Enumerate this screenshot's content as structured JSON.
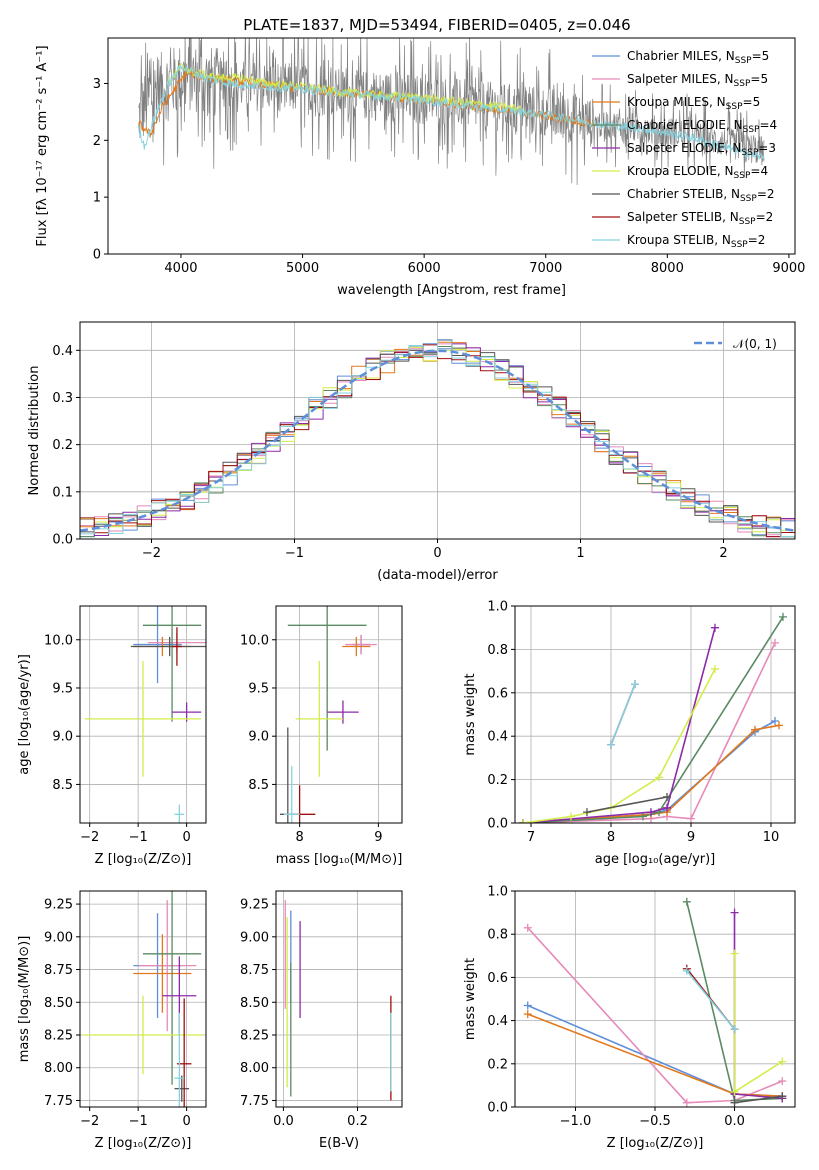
{
  "title": "PLATE=1837, MJD=53494, FIBERID=0405, z=0.046",
  "colors": {
    "chabrier_miles": "#5f8fd8",
    "salpeter_miles": "#e68ab9",
    "kroupa_miles": "#e2781c",
    "chabrier_elodie": "#5a8a62",
    "salpeter_elodie": "#8e2aa8",
    "kroupa_elodie": "#d4ec4a",
    "chabrier_stelib": "#555555",
    "salpeter_stelib": "#a01010",
    "kroupa_stelib": "#86d3df",
    "data": "#808080",
    "grid": "#b0b0b0"
  },
  "chart_data": [
    {
      "id": "spectrum",
      "type": "line",
      "title": "PLATE=1837, MJD=53494, FIBERID=0405, z=0.046",
      "xlabel": "wavelength [Angstrom, rest frame]",
      "ylabel": "Flux [fλ 10⁻¹⁷ erg cm⁻² s⁻¹ A⁻¹]",
      "xlim": [
        3400,
        9050
      ],
      "ylim": [
        0,
        3.8
      ],
      "xticks": [
        4000,
        5000,
        6000,
        7000,
        8000,
        9000
      ],
      "yticks": [
        0,
        1,
        2,
        3
      ],
      "grid": false,
      "legend_position": "upper right",
      "legend": [
        {
          "label": "Chabrier MILES, N",
          "sub": "SSP",
          "suffix": "=5",
          "color_key": "chabrier_miles"
        },
        {
          "label": "Salpeter MILES, N",
          "sub": "SSP",
          "suffix": "=5",
          "color_key": "salpeter_miles"
        },
        {
          "label": "Kroupa MILES, N",
          "sub": "SSP",
          "suffix": "=5",
          "color_key": "kroupa_miles"
        },
        {
          "label": "Chabrier ELODIE, N",
          "sub": "SSP",
          "suffix": "=4",
          "color_key": "chabrier_elodie"
        },
        {
          "label": "Salpeter ELODIE, N",
          "sub": "SSP",
          "suffix": "=3",
          "color_key": "salpeter_elodie"
        },
        {
          "label": "Kroupa ELODIE, N",
          "sub": "SSP",
          "suffix": "=4",
          "color_key": "kroupa_elodie"
        },
        {
          "label": "Chabrier STELIB, N",
          "sub": "SSP",
          "suffix": "=2",
          "color_key": "chabrier_stelib"
        },
        {
          "label": "Salpeter STELIB, N",
          "sub": "SSP",
          "suffix": "=2",
          "color_key": "salpeter_stelib"
        },
        {
          "label": "Kroupa STELIB, N",
          "sub": "SSP",
          "suffix": "=2",
          "color_key": "kroupa_stelib"
        }
      ],
      "series": [
        {
          "name": "data",
          "color_key": "data",
          "x": [
            3650,
            3700,
            3800,
            3900,
            4000,
            4100,
            4200,
            4400,
            4600,
            4800,
            5000,
            5200,
            5400,
            5600,
            5800,
            6000,
            6200,
            6400,
            6600,
            6800,
            7000,
            7200,
            7400,
            7600,
            7800,
            8000,
            8200,
            8400,
            8600,
            8800
          ],
          "y": [
            2.4,
            2.6,
            2.9,
            3.0,
            3.1,
            3.1,
            3.05,
            3.0,
            2.95,
            2.95,
            2.9,
            2.85,
            2.8,
            2.78,
            2.75,
            2.72,
            2.68,
            2.62,
            2.58,
            2.55,
            2.5,
            2.42,
            2.3,
            2.25,
            2.2,
            2.15,
            2.1,
            2.0,
            1.9,
            1.8
          ],
          "noise": 1.1
        },
        {
          "name": "Kroupa MILES",
          "color_key": "kroupa_miles",
          "x": [
            3650,
            3750,
            3850,
            3950,
            4050,
            4200,
            4400,
            4600,
            4800,
            5000,
            5300,
            5600,
            6000,
            6400,
            6800,
            7200,
            7400
          ],
          "y": [
            2.3,
            2.1,
            2.6,
            2.9,
            3.2,
            3.1,
            3.05,
            3.0,
            2.95,
            2.9,
            2.85,
            2.8,
            2.7,
            2.6,
            2.5,
            2.35,
            2.3
          ]
        },
        {
          "name": "Kroupa ELODIE",
          "color_key": "kroupa_elodie",
          "x": [
            3900,
            4000,
            4100,
            4300,
            4500,
            4700,
            5000,
            5300,
            5600,
            6000,
            6400,
            6800
          ],
          "y": [
            3.0,
            3.3,
            3.2,
            3.1,
            3.1,
            3.0,
            2.95,
            2.85,
            2.8,
            2.75,
            2.65,
            2.55
          ]
        },
        {
          "name": "Kroupa STELIB",
          "color_key": "kroupa_stelib",
          "x": [
            3650,
            3700,
            3800,
            3900,
            4000,
            4200,
            4400,
            4700,
            5000,
            5400,
            5800,
            6200,
            6600,
            7000,
            7400,
            7800,
            8200,
            8600,
            8800
          ],
          "y": [
            2.2,
            1.9,
            2.5,
            3.0,
            3.3,
            3.1,
            3.0,
            2.95,
            2.9,
            2.82,
            2.75,
            2.65,
            2.55,
            2.45,
            2.3,
            2.2,
            2.05,
            1.8,
            1.7
          ]
        }
      ]
    },
    {
      "id": "residuals",
      "type": "line",
      "xlabel": "(data-model)/error",
      "ylabel": "Normed distribution",
      "xlim": [
        -2.5,
        2.5
      ],
      "ylim": [
        0,
        0.46
      ],
      "xticks": [
        -2,
        -1,
        0,
        1,
        2
      ],
      "yticks": [
        0.0,
        0.1,
        0.2,
        0.3,
        0.4
      ],
      "grid": true,
      "legend_position": "upper right",
      "legend": [
        {
          "label": "𝒩(0, 1)",
          "color_key": "chabrier_miles",
          "style": "dashed"
        }
      ],
      "bin_width": 0.1
    },
    {
      "id": "age-vs-Z",
      "type": "scatter",
      "xlabel": "Z [log₁₀(Z/Z⊙)]",
      "ylabel": "age  [log₁₀(age/yr)]",
      "xlim": [
        -2.2,
        0.4
      ],
      "ylim": [
        8.1,
        10.35
      ],
      "xticks": [
        -2,
        -1,
        0
      ],
      "yticks": [
        8.5,
        9.0,
        9.5,
        10.0
      ],
      "grid": true,
      "crosses": [
        {
          "color_key": "chabrier_miles",
          "x": -0.6,
          "y": 9.95,
          "xerr": 0.5,
          "yerr": 0.4
        },
        {
          "color_key": "salpeter_miles",
          "x": -0.2,
          "y": 9.97,
          "xerr": 0.6,
          "yerr": 0.1
        },
        {
          "color_key": "kroupa_miles",
          "x": -0.5,
          "y": 9.93,
          "xerr": 0.6,
          "yerr": 0.1
        },
        {
          "color_key": "chabrier_elodie",
          "x": -0.3,
          "y": 10.15,
          "xerr": 0.6,
          "yerr": 1.0
        },
        {
          "color_key": "salpeter_elodie",
          "x": 0.0,
          "y": 9.25,
          "xerr": 0.3,
          "yerr": 0.1
        },
        {
          "color_key": "kroupa_elodie",
          "x": -0.9,
          "y": 9.18,
          "xerr": 1.2,
          "yerr": 0.6
        },
        {
          "color_key": "chabrier_stelib",
          "x": -0.35,
          "y": 9.93,
          "xerr": 0.8,
          "yerr": 0.1
        },
        {
          "color_key": "salpeter_stelib",
          "x": -0.2,
          "y": 9.93,
          "xerr": 0.1,
          "yerr": 0.2
        },
        {
          "color_key": "kroupa_stelib",
          "x": -0.15,
          "y": 8.19,
          "xerr": 0.1,
          "yerr": 0.1
        }
      ]
    },
    {
      "id": "age-vs-mass",
      "type": "scatter",
      "xlabel": "mass [log₁₀(M/M⊙)]",
      "xlim": [
        7.7,
        9.3
      ],
      "ylim": [
        8.1,
        10.35
      ],
      "xticks": [
        8,
        9
      ],
      "yticks": [
        8.5,
        9.0,
        9.5,
        10.0
      ],
      "grid": true,
      "crosses": [
        {
          "color_key": "chabrier_miles",
          "x": 8.78,
          "y": 9.95,
          "xerr": 0.12,
          "yerr": 0.1
        },
        {
          "color_key": "salpeter_miles",
          "x": 8.78,
          "y": 9.95,
          "xerr": 0.2,
          "yerr": 0.1
        },
        {
          "color_key": "kroupa_miles",
          "x": 8.72,
          "y": 9.93,
          "xerr": 0.18,
          "yerr": 0.1
        },
        {
          "color_key": "chabrier_elodie",
          "x": 8.35,
          "y": 10.15,
          "xerr": 0.5,
          "yerr": 1.3
        },
        {
          "color_key": "salpeter_elodie",
          "x": 8.55,
          "y": 9.25,
          "xerr": 0.2,
          "yerr": 0.12
        },
        {
          "color_key": "kroupa_elodie",
          "x": 8.25,
          "y": 9.18,
          "xerr": 0.3,
          "yerr": 0.6
        },
        {
          "color_key": "chabrier_stelib",
          "x": 7.85,
          "y": 8.19,
          "xerr": 0.1,
          "yerr": 0.9
        },
        {
          "color_key": "salpeter_stelib",
          "x": 8.0,
          "y": 8.19,
          "xerr": 0.2,
          "yerr": 0.3
        },
        {
          "color_key": "kroupa_stelib",
          "x": 7.9,
          "y": 8.19,
          "xerr": 0.1,
          "yerr": 0.5
        }
      ]
    },
    {
      "id": "weight-vs-age",
      "type": "line",
      "xlabel": "age  [log₁₀(age/yr)]",
      "ylabel": "mass weight",
      "xlim": [
        6.8,
        10.3
      ],
      "ylim": [
        0,
        1.0
      ],
      "xticks": [
        7,
        8,
        9,
        10
      ],
      "yticks": [
        0.0,
        0.2,
        0.4,
        0.6,
        0.8,
        1.0
      ],
      "grid": true,
      "series": [
        {
          "name": "Chabrier MILES",
          "color_key": "chabrier_miles",
          "x": [
            6.9,
            8.5,
            8.7,
            9.8,
            10.05
          ],
          "y": [
            0.0,
            0.04,
            0.06,
            0.42,
            0.47
          ]
        },
        {
          "name": "Salpeter MILES",
          "color_key": "salpeter_miles",
          "x": [
            6.9,
            8.5,
            8.7,
            9.0,
            10.05
          ],
          "y": [
            0.0,
            0.02,
            0.03,
            0.02,
            0.83
          ]
        },
        {
          "name": "Kroupa MILES",
          "color_key": "kroupa_miles",
          "x": [
            6.9,
            8.5,
            8.7,
            9.8,
            10.1
          ],
          "y": [
            0.0,
            0.04,
            0.05,
            0.43,
            0.45
          ]
        },
        {
          "name": "Chabrier ELODIE",
          "color_key": "chabrier_elodie",
          "x": [
            6.9,
            8.4,
            8.6,
            10.15
          ],
          "y": [
            0.0,
            0.03,
            0.05,
            0.95
          ]
        },
        {
          "name": "Salpeter ELODIE",
          "color_key": "salpeter_elodie",
          "x": [
            6.9,
            8.5,
            8.7,
            9.3
          ],
          "y": [
            0.0,
            0.05,
            0.07,
            0.9
          ]
        },
        {
          "name": "Kroupa ELODIE",
          "color_key": "kroupa_elodie",
          "x": [
            6.9,
            7.5,
            8.0,
            8.6,
            9.3
          ],
          "y": [
            0.0,
            0.03,
            0.07,
            0.21,
            0.71
          ]
        },
        {
          "name": "Chabrier STELIB",
          "color_key": "chabrier_stelib",
          "x": [
            7.7,
            8.7
          ],
          "y": [
            0.05,
            0.12
          ]
        },
        {
          "name": "Salpeter STELIB",
          "color_key": "salpeter_stelib",
          "x": [
            8.0,
            8.3
          ],
          "y": [
            0.36,
            0.64
          ]
        },
        {
          "name": "Kroupa STELIB",
          "color_key": "kroupa_stelib",
          "x": [
            8.0,
            8.3
          ],
          "y": [
            0.36,
            0.64
          ]
        }
      ]
    },
    {
      "id": "mass-vs-Z",
      "type": "scatter",
      "xlabel": "Z [log₁₀(Z/Z⊙)]",
      "ylabel": "mass [log₁₀(M/M⊙)]",
      "xlim": [
        -2.2,
        0.4
      ],
      "ylim": [
        7.7,
        9.35
      ],
      "xticks": [
        -2,
        -1,
        0
      ],
      "yticks": [
        7.75,
        8.0,
        8.25,
        8.5,
        8.75,
        9.0,
        9.25
      ],
      "grid": true,
      "crosses": [
        {
          "color_key": "chabrier_miles",
          "x": -0.6,
          "y": 8.78,
          "xerr": 0.5,
          "yerr": 0.4
        },
        {
          "color_key": "salpeter_miles",
          "x": -0.4,
          "y": 8.78,
          "xerr": 0.6,
          "yerr": 0.5
        },
        {
          "color_key": "kroupa_miles",
          "x": -0.5,
          "y": 8.72,
          "xerr": 0.6,
          "yerr": 0.3
        },
        {
          "color_key": "chabrier_elodie",
          "x": -0.3,
          "y": 8.87,
          "xerr": 0.6,
          "yerr": 1.0
        },
        {
          "color_key": "salpeter_elodie",
          "x": -0.15,
          "y": 8.55,
          "xerr": 0.35,
          "yerr": 0.3
        },
        {
          "color_key": "kroupa_elodie",
          "x": -0.9,
          "y": 8.25,
          "xerr": 1.25,
          "yerr": 0.3
        },
        {
          "color_key": "chabrier_stelib",
          "x": -0.1,
          "y": 7.84,
          "xerr": 0.15,
          "yerr": 0.1
        },
        {
          "color_key": "salpeter_stelib",
          "x": -0.05,
          "y": 8.03,
          "xerr": 0.15,
          "yerr": 0.5
        },
        {
          "color_key": "kroupa_stelib",
          "x": -0.15,
          "y": 7.92,
          "xerr": 0.1,
          "yerr": 0.5
        }
      ]
    },
    {
      "id": "mass-vs-EBV",
      "type": "scatter",
      "xlabel": "E(B-V)",
      "xlim": [
        -0.02,
        0.32
      ],
      "ylim": [
        7.7,
        9.35
      ],
      "xticks": [
        0.0,
        0.2
      ],
      "yticks": [
        7.75,
        8.0,
        8.25,
        8.5,
        8.75,
        9.0,
        9.25
      ],
      "grid": true,
      "vbars": [
        {
          "color_key": "salpeter_miles",
          "x": 0.005,
          "y0": 8.45,
          "y1": 9.28
        },
        {
          "color_key": "kroupa_elodie",
          "x": 0.01,
          "y0": 7.85,
          "y1": 9.15
        },
        {
          "color_key": "chabrier_miles",
          "x": 0.02,
          "y0": 8.5,
          "y1": 9.2
        },
        {
          "color_key": "chabrier_elodie",
          "x": 0.02,
          "y0": 7.78,
          "y1": 8.8
        },
        {
          "color_key": "salpeter_elodie",
          "x": 0.045,
          "y0": 8.38,
          "y1": 9.12
        },
        {
          "color_key": "salpeter_stelib",
          "x": 0.29,
          "y0": 7.75,
          "y1": 8.55
        },
        {
          "color_key": "kroupa_stelib",
          "x": 0.29,
          "y0": 7.82,
          "y1": 8.42
        }
      ]
    },
    {
      "id": "weight-vs-Z",
      "type": "line",
      "xlabel": "Z [log₁₀(Z/Z⊙)]",
      "ylabel": "mass weight",
      "xlim": [
        -1.38,
        0.38
      ],
      "ylim": [
        0,
        1.0
      ],
      "xticks": [
        -1.0,
        -0.5,
        0.0
      ],
      "yticks": [
        0.0,
        0.2,
        0.4,
        0.6,
        0.8,
        1.0
      ],
      "grid": true,
      "series": [
        {
          "name": "Chabrier MILES",
          "color_key": "chabrier_miles",
          "x": [
            -1.3,
            0.0,
            0.3
          ],
          "y": [
            0.47,
            0.06,
            0.05
          ]
        },
        {
          "name": "Salpeter MILES",
          "color_key": "salpeter_miles",
          "x": [
            -1.3,
            -0.3,
            0.0,
            0.3
          ],
          "y": [
            0.83,
            0.02,
            0.03,
            0.12
          ]
        },
        {
          "name": "Kroupa MILES",
          "color_key": "kroupa_miles",
          "x": [
            -1.3,
            0.0,
            0.3
          ],
          "y": [
            0.43,
            0.06,
            0.05
          ]
        },
        {
          "name": "Chabrier ELODIE",
          "color_key": "chabrier_elodie",
          "x": [
            -0.3,
            0.0,
            0.3
          ],
          "y": [
            0.95,
            0.03,
            0.04
          ]
        },
        {
          "name": "Salpeter ELODIE",
          "color_key": "salpeter_elodie",
          "x": [
            0.0,
            0.0,
            0.3
          ],
          "y": [
            0.9,
            0.06,
            0.04
          ]
        },
        {
          "name": "Kroupa ELODIE",
          "color_key": "kroupa_elodie",
          "x": [
            0.0,
            0.0,
            0.3
          ],
          "y": [
            0.71,
            0.07,
            0.21
          ]
        },
        {
          "name": "Chabrier STELIB",
          "color_key": "chabrier_stelib",
          "x": [
            0.0,
            0.3
          ],
          "y": [
            0.02,
            0.05
          ]
        },
        {
          "name": "Salpeter STELIB",
          "color_key": "salpeter_stelib",
          "x": [
            -0.3,
            0.0
          ],
          "y": [
            0.64,
            0.36
          ]
        },
        {
          "name": "Kroupa STELIB",
          "color_key": "kroupa_stelib",
          "x": [
            -0.3,
            0.0
          ],
          "y": [
            0.63,
            0.36
          ]
        }
      ]
    }
  ]
}
